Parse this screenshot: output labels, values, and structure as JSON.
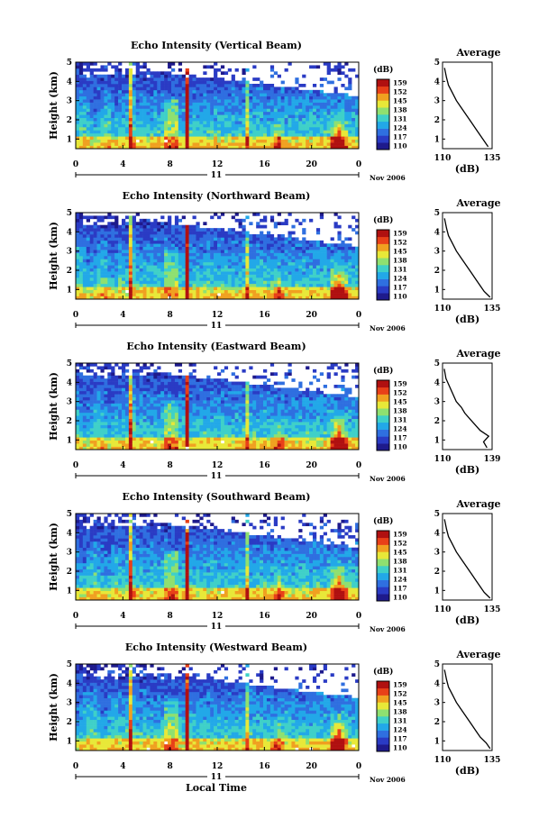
{
  "footer": {
    "xlabel": "Local Time"
  },
  "colorbar": {
    "unit": "(dB)",
    "ticks": [
      "159",
      "152",
      "145",
      "138",
      "131",
      "124",
      "117",
      "110"
    ],
    "colors": [
      "#1e1a8c",
      "#2a3bc4",
      "#2f6fe0",
      "#22a8e8",
      "#3fd0c8",
      "#8fe070",
      "#e8e838",
      "#f0a020",
      "#e84018",
      "#b01010"
    ]
  },
  "chart_data": [
    {
      "type": "heatmap",
      "title": "Echo Intensity (Vertical Beam)",
      "ylabel": "Height (km)",
      "ylim": [
        0.5,
        5
      ],
      "yticks": [
        "1",
        "2",
        "3",
        "4",
        "5"
      ],
      "xlim": [
        0,
        24
      ],
      "xticks": [
        "0",
        "4",
        "8",
        "12",
        "16",
        "20",
        "0"
      ],
      "date_day": "11",
      "date_label": "Nov 2006",
      "colorbar_range": [
        110,
        159
      ],
      "average": {
        "title": "Average",
        "xlabel": "(dB)",
        "xticks": [
          "110",
          "135"
        ],
        "xlim": [
          110,
          135
        ],
        "ylim": [
          0.5,
          5
        ],
        "yticks": [
          "1",
          "2",
          "3",
          "4",
          "5"
        ],
        "x": [
          133,
          131,
          129,
          127,
          125,
          123,
          121,
          119,
          117,
          115,
          113,
          112,
          111
        ],
        "y": [
          0.6,
          0.9,
          1.2,
          1.5,
          1.8,
          2.1,
          2.4,
          2.7,
          3.0,
          3.4,
          3.8,
          4.2,
          4.7
        ]
      }
    },
    {
      "type": "heatmap",
      "title": "Echo Intensity (Northward Beam)",
      "ylabel": "Height (km)",
      "ylim": [
        0.5,
        5
      ],
      "yticks": [
        "1",
        "2",
        "3",
        "4",
        "5"
      ],
      "xlim": [
        0,
        24
      ],
      "xticks": [
        "0",
        "4",
        "8",
        "12",
        "16",
        "20",
        "0"
      ],
      "date_day": "11",
      "date_label": "Nov 2006",
      "colorbar_range": [
        110,
        159
      ],
      "average": {
        "title": "Average",
        "xlabel": "(dB)",
        "xticks": [
          "110",
          "135"
        ],
        "xlim": [
          110,
          135
        ],
        "ylim": [
          0.5,
          5
        ],
        "yticks": [
          "1",
          "2",
          "3",
          "4",
          "5"
        ],
        "x": [
          134,
          131,
          129,
          127,
          125,
          123,
          121,
          119,
          117,
          115,
          113,
          112,
          111
        ],
        "y": [
          0.6,
          0.9,
          1.2,
          1.5,
          1.8,
          2.1,
          2.4,
          2.7,
          3.0,
          3.4,
          3.8,
          4.2,
          4.7
        ]
      }
    },
    {
      "type": "heatmap",
      "title": "Echo Intensity (Eastward Beam)",
      "ylabel": "Height (km)",
      "ylim": [
        0.5,
        5
      ],
      "yticks": [
        "1",
        "2",
        "3",
        "4",
        "5"
      ],
      "xlim": [
        0,
        24
      ],
      "xticks": [
        "0",
        "4",
        "8",
        "12",
        "16",
        "20",
        "0"
      ],
      "date_day": "11",
      "date_label": "Nov 2006",
      "colorbar_range": [
        110,
        159
      ],
      "average": {
        "title": "Average",
        "xlabel": "(dB)",
        "xticks": [
          "110",
          "139"
        ],
        "xlim": [
          110,
          139
        ],
        "ylim": [
          0.5,
          5
        ],
        "yticks": [
          "1",
          "2",
          "3",
          "4",
          "5"
        ],
        "x": [
          136,
          134,
          137,
          132,
          129,
          126,
          123,
          121,
          118,
          116,
          114,
          112,
          111
        ],
        "y": [
          0.6,
          0.9,
          1.2,
          1.5,
          1.8,
          2.1,
          2.4,
          2.7,
          3.0,
          3.4,
          3.8,
          4.2,
          4.7
        ]
      }
    },
    {
      "type": "heatmap",
      "title": "Echo Intensity (Southward Beam)",
      "ylabel": "Height (km)",
      "ylim": [
        0.5,
        5
      ],
      "yticks": [
        "1",
        "2",
        "3",
        "4",
        "5"
      ],
      "xlim": [
        0,
        24
      ],
      "xticks": [
        "0",
        "4",
        "8",
        "12",
        "16",
        "20",
        "0"
      ],
      "date_day": "11",
      "date_label": "Nov 2006",
      "colorbar_range": [
        110,
        159
      ],
      "average": {
        "title": "Average",
        "xlabel": "(dB)",
        "xticks": [
          "110",
          "135"
        ],
        "xlim": [
          110,
          135
        ],
        "ylim": [
          0.5,
          5
        ],
        "yticks": [
          "1",
          "2",
          "3",
          "4",
          "5"
        ],
        "x": [
          134,
          131,
          129,
          127,
          125,
          123,
          121,
          119,
          117,
          115,
          113,
          112,
          111
        ],
        "y": [
          0.6,
          0.9,
          1.2,
          1.5,
          1.8,
          2.1,
          2.4,
          2.7,
          3.0,
          3.4,
          3.8,
          4.2,
          4.7
        ]
      }
    },
    {
      "type": "heatmap",
      "title": "Echo Intensity (Westward Beam)",
      "ylabel": "Height (km)",
      "ylim": [
        0.5,
        5
      ],
      "yticks": [
        "1",
        "2",
        "3",
        "4",
        "5"
      ],
      "xlim": [
        0,
        24
      ],
      "xticks": [
        "0",
        "4",
        "8",
        "12",
        "16",
        "20",
        "0"
      ],
      "date_day": "11",
      "date_label": "Nov 2006",
      "colorbar_range": [
        110,
        159
      ],
      "average": {
        "title": "Average",
        "xlabel": "(dB)",
        "xticks": [
          "110",
          "135"
        ],
        "xlim": [
          110,
          135
        ],
        "ylim": [
          0.5,
          5
        ],
        "yticks": [
          "1",
          "2",
          "3",
          "4",
          "5"
        ],
        "x": [
          134,
          132,
          129,
          127,
          125,
          123,
          121,
          119,
          117,
          115,
          113,
          112,
          111
        ],
        "y": [
          0.6,
          0.9,
          1.2,
          1.5,
          1.8,
          2.1,
          2.4,
          2.7,
          3.0,
          3.4,
          3.8,
          4.2,
          4.7
        ]
      }
    }
  ]
}
